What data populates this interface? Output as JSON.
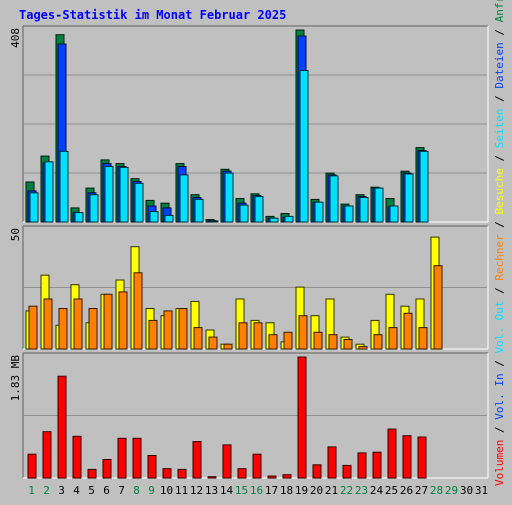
{
  "title": "Tages-Statistik im Monat Februar 2025",
  "colors": {
    "background": "#c0c0c0",
    "title": "#0000ff",
    "hits": "#008040",
    "files": "#0040ff",
    "pages": "#00e0ff",
    "visits": "#ffff00",
    "sites": "#ff8000",
    "vol_in": "#0040ff",
    "vol_out": "#00e0ff",
    "volume": "#ff0000",
    "weekend": "#008040",
    "weekday": "#000000"
  },
  "chart_data": [
    {
      "type": "bar",
      "panel": "requests",
      "ymax_label": "408",
      "ylim": [
        0,
        408
      ],
      "categories": [
        "1",
        "2",
        "3",
        "4",
        "5",
        "6",
        "7",
        "8",
        "9",
        "10",
        "11",
        "12",
        "13",
        "14",
        "15",
        "16",
        "17",
        "18",
        "19",
        "20",
        "21",
        "22",
        "23",
        "24",
        "25",
        "26",
        "27",
        "28",
        "29",
        "30",
        "31"
      ],
      "series": [
        {
          "name": "Anfragen",
          "values": [
            85,
            140,
            398,
            30,
            72,
            132,
            124,
            92,
            46,
            40,
            124,
            58,
            5,
            112,
            50,
            60,
            12,
            18,
            408,
            48,
            104,
            38,
            58,
            74,
            50,
            108,
            158,
            0,
            0,
            0,
            0
          ]
        },
        {
          "name": "Dateien",
          "values": [
            66,
            126,
            378,
            20,
            62,
            124,
            118,
            86,
            34,
            30,
            118,
            52,
            3,
            108,
            40,
            56,
            8,
            10,
            395,
            42,
            100,
            34,
            54,
            72,
            32,
            104,
            152,
            0,
            0,
            0,
            0
          ]
        },
        {
          "name": "Seiten",
          "values": [
            62,
            128,
            150,
            20,
            58,
            118,
            116,
            82,
            22,
            14,
            100,
            48,
            2,
            104,
            36,
            54,
            8,
            12,
            322,
            42,
            98,
            34,
            52,
            72,
            34,
            102,
            150,
            0,
            0,
            0,
            0
          ]
        }
      ]
    },
    {
      "type": "bar",
      "panel": "visitors",
      "ymax_label": "50",
      "ylim": [
        0,
        50
      ],
      "categories": [
        "1",
        "2",
        "3",
        "4",
        "5",
        "6",
        "7",
        "8",
        "9",
        "10",
        "11",
        "12",
        "13",
        "14",
        "15",
        "16",
        "17",
        "18",
        "19",
        "20",
        "21",
        "22",
        "23",
        "24",
        "25",
        "26",
        "27",
        "28",
        "29",
        "30",
        "31"
      ],
      "series": [
        {
          "name": "Besuche",
          "values": [
            16,
            31,
            10,
            27,
            11,
            23,
            29,
            43,
            17,
            14,
            17,
            20,
            8,
            2,
            21,
            12,
            11,
            3,
            26,
            14,
            21,
            5,
            2,
            12,
            23,
            18,
            21,
            47,
            0,
            0,
            0
          ]
        },
        {
          "name": "Rechner",
          "values": [
            18,
            21,
            17,
            21,
            17,
            23,
            24,
            32,
            12,
            16,
            17,
            9,
            5,
            2,
            11,
            11,
            6,
            7,
            14,
            7,
            6,
            4,
            1,
            6,
            9,
            15,
            9,
            35,
            0,
            0,
            0
          ]
        }
      ]
    },
    {
      "type": "bar",
      "panel": "volume",
      "ymax_label": "1.83 MB",
      "ylim": [
        0,
        1.83
      ],
      "categories": [
        "1",
        "2",
        "3",
        "4",
        "5",
        "6",
        "7",
        "8",
        "9",
        "10",
        "11",
        "12",
        "13",
        "14",
        "15",
        "16",
        "17",
        "18",
        "19",
        "20",
        "21",
        "22",
        "23",
        "24",
        "25",
        "26",
        "27",
        "28",
        "29",
        "30",
        "31"
      ],
      "series": [
        {
          "name": "Volumen",
          "values": [
            0.36,
            0.7,
            1.54,
            0.63,
            0.13,
            0.28,
            0.6,
            0.6,
            0.34,
            0.14,
            0.13,
            0.55,
            0.02,
            0.5,
            0.14,
            0.36,
            0.03,
            0.05,
            1.83,
            0.2,
            0.47,
            0.19,
            0.38,
            0.39,
            0.74,
            0.64,
            0.62,
            0,
            0,
            0,
            0
          ]
        }
      ]
    }
  ],
  "side_legend": [
    {
      "text": "Anfragen",
      "color": "#008040"
    },
    {
      "text": "Dateien",
      "color": "#0040ff"
    },
    {
      "text": "Seiten",
      "color": "#00e0ff"
    },
    {
      "text": "Besuche",
      "color": "#ffff00"
    },
    {
      "text": "Rechner",
      "color": "#ff8000"
    },
    {
      "text": "Vol. Out",
      "color": "#00e0ff"
    },
    {
      "text": "Vol. In",
      "color": "#0040ff"
    },
    {
      "text": "Volumen",
      "color": "#ff0000"
    }
  ],
  "day_labels": [
    "1",
    "2",
    "3",
    "4",
    "5",
    "6",
    "7",
    "8",
    "9",
    "10",
    "11",
    "12",
    "13",
    "14",
    "15",
    "16",
    "17",
    "18",
    "19",
    "20",
    "21",
    "22",
    "23",
    "24",
    "25",
    "26",
    "27",
    "28",
    "29",
    "30",
    "31"
  ],
  "weekend_days": [
    1,
    2,
    8,
    9,
    15,
    16,
    22,
    23,
    28,
    29
  ]
}
